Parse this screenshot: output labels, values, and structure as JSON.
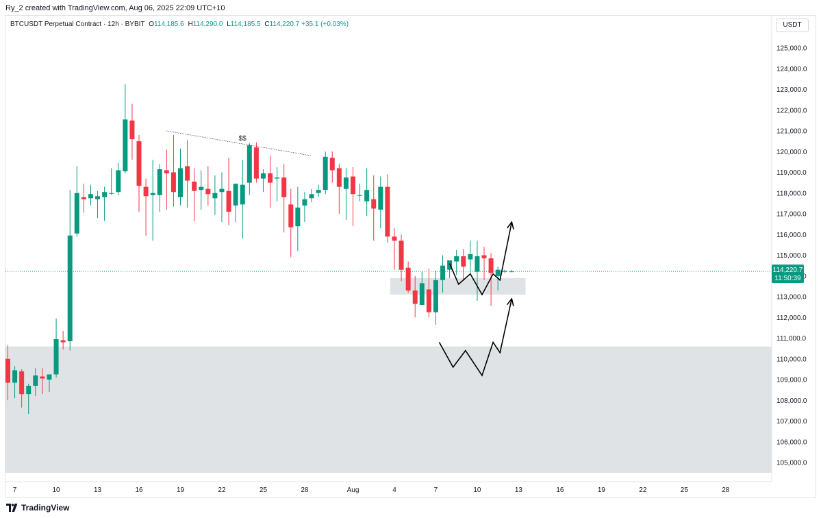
{
  "header": {
    "credit": "Ry_2 created with TradingView.com, Aug 06, 2025 22:09 UTC+10"
  },
  "legend": {
    "symbol": "BTCUSDT Perpetual Contract · 12h · BYBIT",
    "open_label": "O",
    "open": "114,185.6",
    "high_label": "H",
    "high": "114,290.0",
    "low_label": "L",
    "low": "114,185.5",
    "close_label": "C",
    "close": "114,220.7",
    "change": "+35.1 (+0.03%)"
  },
  "currency_button": "USDT",
  "price_tag": {
    "price": "114,220.7",
    "countdown": "11:50:39"
  },
  "footer": {
    "brand": "TradingView"
  },
  "colors": {
    "up": "#089981",
    "down": "#f23645",
    "zone": "#e0e3e6",
    "text": "#131722"
  },
  "chart_data": {
    "type": "candlestick",
    "ylim": [
      104500,
      125800
    ],
    "y_ticks": [
      105000,
      106000,
      107000,
      108000,
      109000,
      110000,
      111000,
      112000,
      113000,
      114000,
      115000,
      116000,
      117000,
      118000,
      119000,
      120000,
      121000,
      122000,
      123000,
      124000,
      125000
    ],
    "y_tick_labels": [
      "105,000.0",
      "106,000.0",
      "107,000.0",
      "108,000.0",
      "109,000.0",
      "110,000.0",
      "111,000.0",
      "112,000.0",
      "113,000.0",
      "114,000.0",
      "115,000.0",
      "116,000.0",
      "117,000.0",
      "118,000.0",
      "119,000.0",
      "120,000.0",
      "121,000.0",
      "122,000.0",
      "123,000.0",
      "124,000.0",
      "125,000.0"
    ],
    "x_ticks": [
      {
        "label": "7",
        "i": 1
      },
      {
        "label": "10",
        "i": 7
      },
      {
        "label": "13",
        "i": 13
      },
      {
        "label": "16",
        "i": 19
      },
      {
        "label": "19",
        "i": 25
      },
      {
        "label": "22",
        "i": 31
      },
      {
        "label": "25",
        "i": 37
      },
      {
        "label": "28",
        "i": 43
      },
      {
        "label": "Aug",
        "i": 50
      },
      {
        "label": "4",
        "i": 56
      },
      {
        "label": "7",
        "i": 62
      },
      {
        "label": "10",
        "i": 68
      },
      {
        "label": "13",
        "i": 74
      },
      {
        "label": "16",
        "i": 80
      },
      {
        "label": "19",
        "i": 86
      },
      {
        "label": "22",
        "i": 92
      },
      {
        "label": "25",
        "i": 98
      },
      {
        "label": "28",
        "i": 104
      }
    ],
    "candles": [
      [
        110000,
        110650,
        108000,
        108850
      ],
      [
        108850,
        109650,
        108100,
        109450
      ],
      [
        109400,
        109500,
        107650,
        108300
      ],
      [
        108300,
        108800,
        107350,
        108700
      ],
      [
        108700,
        109550,
        108200,
        109200
      ],
      [
        109150,
        109550,
        108300,
        109050
      ],
      [
        109000,
        109250,
        108400,
        109250
      ],
      [
        109250,
        111950,
        109100,
        110950
      ],
      [
        110900,
        111350,
        110450,
        110800
      ],
      [
        110850,
        118150,
        110400,
        115950
      ],
      [
        116050,
        119300,
        115900,
        118000
      ],
      [
        117800,
        118450,
        117050,
        117700
      ],
      [
        117750,
        118400,
        117400,
        117950
      ],
      [
        117700,
        118100,
        116800,
        117850
      ],
      [
        117800,
        118300,
        116650,
        118050
      ],
      [
        118000,
        119200,
        117900,
        118000
      ],
      [
        118050,
        119450,
        117900,
        119100
      ],
      [
        119050,
        123250,
        118950,
        121550
      ],
      [
        121500,
        122300,
        119600,
        120600
      ],
      [
        120500,
        120800,
        117100,
        118350
      ],
      [
        118300,
        118700,
        115950,
        117850
      ],
      [
        117900,
        119600,
        115700,
        118000
      ],
      [
        117900,
        119400,
        117100,
        119150
      ],
      [
        119100,
        120100,
        117200,
        118950
      ],
      [
        119000,
        120800,
        117350,
        118050
      ],
      [
        117800,
        120150,
        117400,
        119200
      ],
      [
        119300,
        120550,
        117300,
        118600
      ],
      [
        118550,
        119200,
        116650,
        118100
      ],
      [
        118150,
        119100,
        117200,
        118300
      ],
      [
        118200,
        119300,
        117400,
        117950
      ],
      [
        117750,
        118850,
        116950,
        118000
      ],
      [
        118050,
        119000,
        116600,
        118200
      ],
      [
        118100,
        119700,
        116450,
        117100
      ],
      [
        117400,
        118300,
        116600,
        118450
      ],
      [
        117450,
        119600,
        115800,
        118400
      ],
      [
        118500,
        120400,
        117900,
        120300
      ],
      [
        120200,
        120450,
        118500,
        118700
      ],
      [
        118700,
        119150,
        118050,
        118950
      ],
      [
        118950,
        119800,
        117300,
        118500
      ],
      [
        118700,
        119250,
        117600,
        118750
      ],
      [
        118750,
        119400,
        116100,
        117800
      ],
      [
        117450,
        118200,
        114900,
        116350
      ],
      [
        116400,
        118300,
        115200,
        117300
      ],
      [
        117400,
        118050,
        116600,
        117700
      ],
      [
        117750,
        118200,
        117550,
        117950
      ],
      [
        118000,
        118400,
        117800,
        118150
      ],
      [
        118150,
        120000,
        117950,
        119750
      ],
      [
        119700,
        120000,
        118500,
        119100
      ],
      [
        119200,
        119400,
        117000,
        118300
      ],
      [
        118200,
        119200,
        116700,
        118750
      ],
      [
        118800,
        119250,
        116400,
        117950
      ],
      [
        117900,
        118450,
        117600,
        117900
      ],
      [
        117600,
        119200,
        116900,
        118150
      ],
      [
        117700,
        118850,
        115700,
        117250
      ],
      [
        117200,
        118800,
        116300,
        118300
      ],
      [
        118300,
        118900,
        115600,
        115900
      ],
      [
        115900,
        116300,
        114300,
        115700
      ],
      [
        115700,
        116000,
        113750,
        114300
      ],
      [
        114400,
        114700,
        113200,
        113300
      ],
      [
        113300,
        114000,
        112000,
        112650
      ],
      [
        112600,
        114200,
        112600,
        113650
      ],
      [
        113350,
        114350,
        112000,
        112250
      ],
      [
        112250,
        114250,
        111650,
        113800
      ],
      [
        113800,
        115000,
        113200,
        114500
      ],
      [
        114300,
        114700,
        113900,
        114750
      ],
      [
        114700,
        115250,
        114050,
        114950
      ],
      [
        114950,
        115300,
        113800,
        114450
      ],
      [
        114800,
        115700,
        114150,
        115050
      ],
      [
        114200,
        115700,
        112800,
        114950
      ],
      [
        115000,
        115400,
        113800,
        114850
      ],
      [
        114850,
        115100,
        112550,
        114150
      ],
      [
        114000,
        114450,
        113300,
        114300
      ],
      [
        114200,
        114300,
        114150,
        114250
      ],
      [
        114185.6,
        114290,
        114185.5,
        114220.7
      ]
    ],
    "zones": [
      {
        "from_i": -1,
        "to_i": 113,
        "low": 104500,
        "high": 110600
      },
      {
        "from_i": 55,
        "to_i": 75,
        "low": 113100,
        "high": 113900
      }
    ],
    "annotation": {
      "text": "$$",
      "from": [
        23,
        121000
      ],
      "to": [
        44,
        119800
      ]
    },
    "projections": [
      {
        "points": [
          [
            64,
            114600
          ],
          [
            65.3,
            113600
          ],
          [
            67,
            114100
          ],
          [
            68.7,
            113100
          ],
          [
            70.3,
            114100
          ],
          [
            71.3,
            113800
          ],
          [
            73,
            116600
          ]
        ]
      },
      {
        "points": [
          [
            62.5,
            110800
          ],
          [
            64.5,
            109600
          ],
          [
            66.3,
            110400
          ],
          [
            68.7,
            109200
          ],
          [
            70.3,
            110800
          ],
          [
            71.3,
            110300
          ],
          [
            73,
            112900
          ]
        ]
      }
    ],
    "last_price": 114220.7
  }
}
